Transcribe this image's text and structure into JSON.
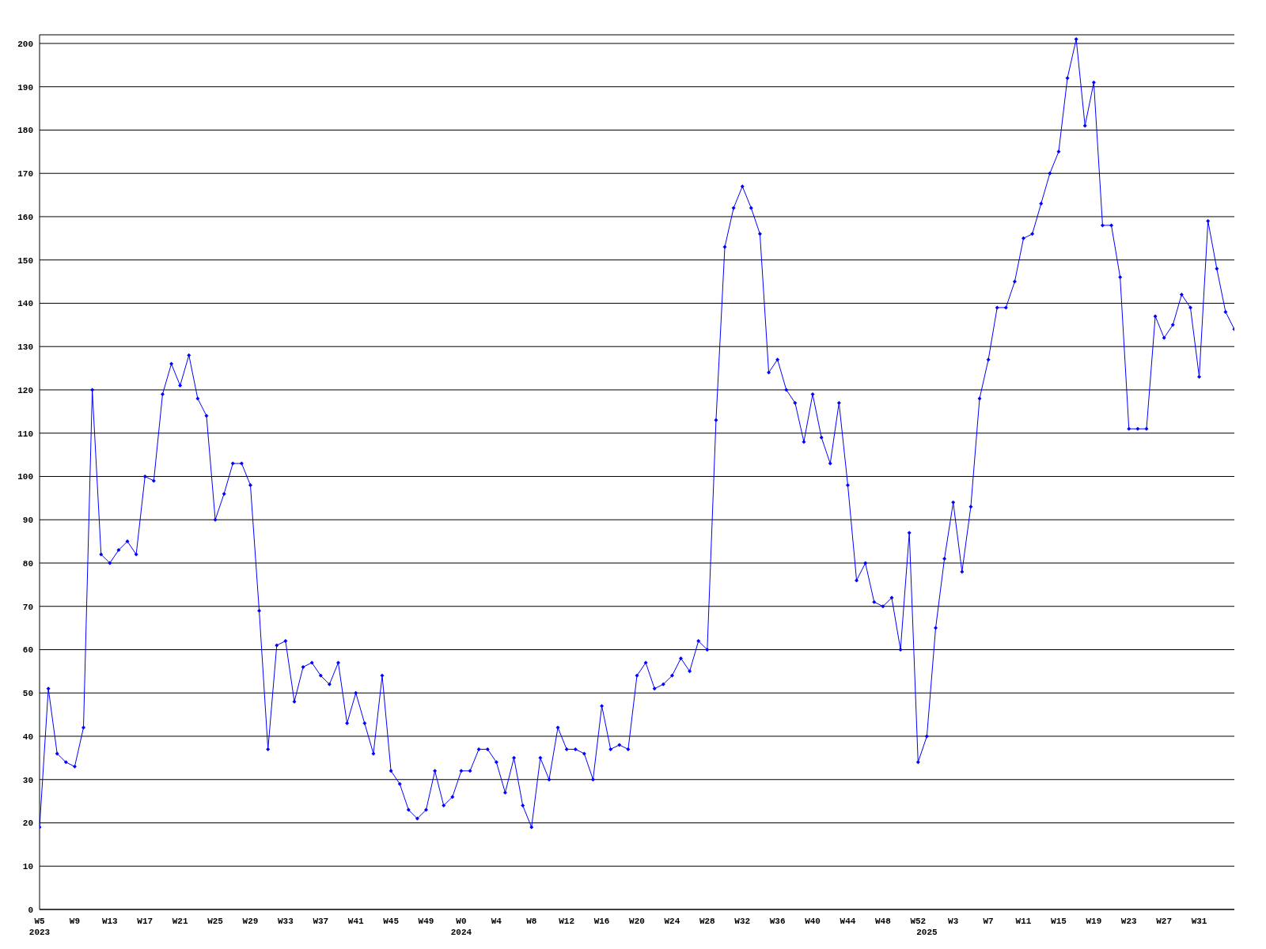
{
  "chart_data": {
    "type": "line",
    "categories": [
      "W5\n2023",
      null,
      null,
      null,
      "W9",
      null,
      null,
      null,
      "W13",
      null,
      null,
      null,
      "W17",
      null,
      null,
      null,
      "W21",
      null,
      null,
      null,
      "W25",
      null,
      null,
      null,
      "W29",
      null,
      null,
      null,
      "W33",
      null,
      null,
      null,
      "W37",
      null,
      null,
      null,
      "W41",
      null,
      null,
      null,
      "W45",
      null,
      null,
      null,
      "W49",
      null,
      null,
      null,
      "W0\n2024",
      null,
      null,
      null,
      "W4",
      null,
      null,
      null,
      "W8",
      null,
      null,
      null,
      "W12",
      null,
      null,
      null,
      "W16",
      null,
      null,
      null,
      "W20",
      null,
      null,
      null,
      "W24",
      null,
      null,
      null,
      "W28",
      null,
      null,
      null,
      "W32",
      null,
      null,
      null,
      "W36",
      null,
      null,
      null,
      "W40",
      null,
      null,
      null,
      "W44",
      null,
      null,
      null,
      "W48",
      null,
      null,
      null,
      "W52",
      "\n2025",
      null,
      null,
      "W3",
      null,
      null,
      null,
      "W7",
      null,
      null,
      null,
      "W11",
      null,
      null,
      null,
      "W15",
      null,
      null,
      null,
      "W19",
      null,
      null,
      null,
      "W23",
      null,
      null,
      null,
      "W27",
      null,
      null,
      null,
      "W31",
      null,
      null,
      null,
      null
    ],
    "series": [
      {
        "color": "#0000ff",
        "values": [
          19,
          51,
          36,
          34,
          33,
          42,
          120,
          82,
          80,
          83,
          85,
          82,
          100,
          99,
          119,
          126,
          121,
          128,
          118,
          114,
          90,
          96,
          103,
          103,
          98,
          69,
          37,
          61,
          62,
          48,
          56,
          57,
          54,
          52,
          57,
          43,
          50,
          43,
          36,
          54,
          32,
          29,
          23,
          21,
          23,
          32,
          24,
          26,
          32,
          32,
          37,
          37,
          34,
          27,
          35,
          24,
          19,
          35,
          30,
          42,
          37,
          37,
          36,
          30,
          47,
          37,
          38,
          37,
          54,
          57,
          51,
          52,
          54,
          58,
          55,
          62,
          60,
          113,
          153,
          162,
          167,
          162,
          156,
          124,
          127,
          120,
          117,
          108,
          119,
          109,
          103,
          117,
          98,
          76,
          80,
          71,
          70,
          72,
          60,
          87,
          34,
          40,
          65,
          81,
          94,
          78,
          93,
          118,
          127,
          139,
          139,
          145,
          155,
          156,
          163,
          170,
          175,
          192,
          201,
          181,
          191,
          158,
          158,
          146,
          111,
          111,
          111,
          137,
          132,
          135,
          142,
          139,
          123,
          159,
          148,
          138,
          134
        ]
      }
    ],
    "ylim": [
      0,
      202
    ],
    "yticks": [
      0,
      10,
      20,
      30,
      40,
      50,
      60,
      70,
      80,
      90,
      100,
      110,
      120,
      130,
      140,
      150,
      160,
      170,
      180,
      190,
      200
    ],
    "grid": "y",
    "marker": "diamond",
    "line_style": "solid"
  }
}
